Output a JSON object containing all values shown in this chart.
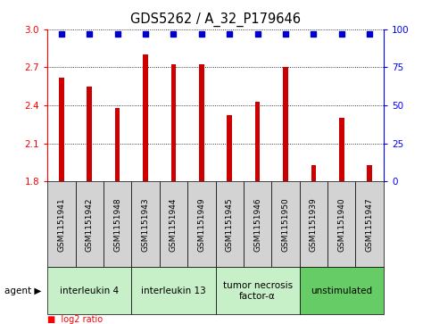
{
  "title": "GDS5262 / A_32_P179646",
  "samples": [
    "GSM1151941",
    "GSM1151942",
    "GSM1151948",
    "GSM1151943",
    "GSM1151944",
    "GSM1151949",
    "GSM1151945",
    "GSM1151946",
    "GSM1151950",
    "GSM1151939",
    "GSM1151940",
    "GSM1151947"
  ],
  "log2_values": [
    2.62,
    2.55,
    2.38,
    2.8,
    2.72,
    2.72,
    2.32,
    2.43,
    2.7,
    1.93,
    2.3,
    1.93
  ],
  "percentile_values": [
    100,
    100,
    100,
    100,
    100,
    100,
    100,
    100,
    100,
    100,
    100,
    100
  ],
  "agents": [
    {
      "label": "interleukin 4",
      "samples": [
        0,
        1,
        2
      ],
      "color": "#c8f0c8"
    },
    {
      "label": "interleukin 13",
      "samples": [
        3,
        4,
        5
      ],
      "color": "#c8f0c8"
    },
    {
      "label": "tumor necrosis\nfactor-α",
      "samples": [
        6,
        7,
        8
      ],
      "color": "#c8f0c8"
    },
    {
      "label": "unstimulated",
      "samples": [
        9,
        10,
        11
      ],
      "color": "#66cc66"
    }
  ],
  "ylim_left": [
    1.8,
    3.0
  ],
  "ylim_right": [
    0,
    100
  ],
  "yticks_left": [
    1.8,
    2.1,
    2.4,
    2.7,
    3.0
  ],
  "yticks_right": [
    0,
    25,
    50,
    75,
    100
  ],
  "bar_color": "#cc0000",
  "percentile_color": "#0000cc",
  "col_bg_color": "#d3d3d3",
  "plot_bg_color": "#ffffff",
  "agent_label_fontsize": 7.5,
  "tick_label_fontsize": 6.5,
  "title_fontsize": 10.5
}
